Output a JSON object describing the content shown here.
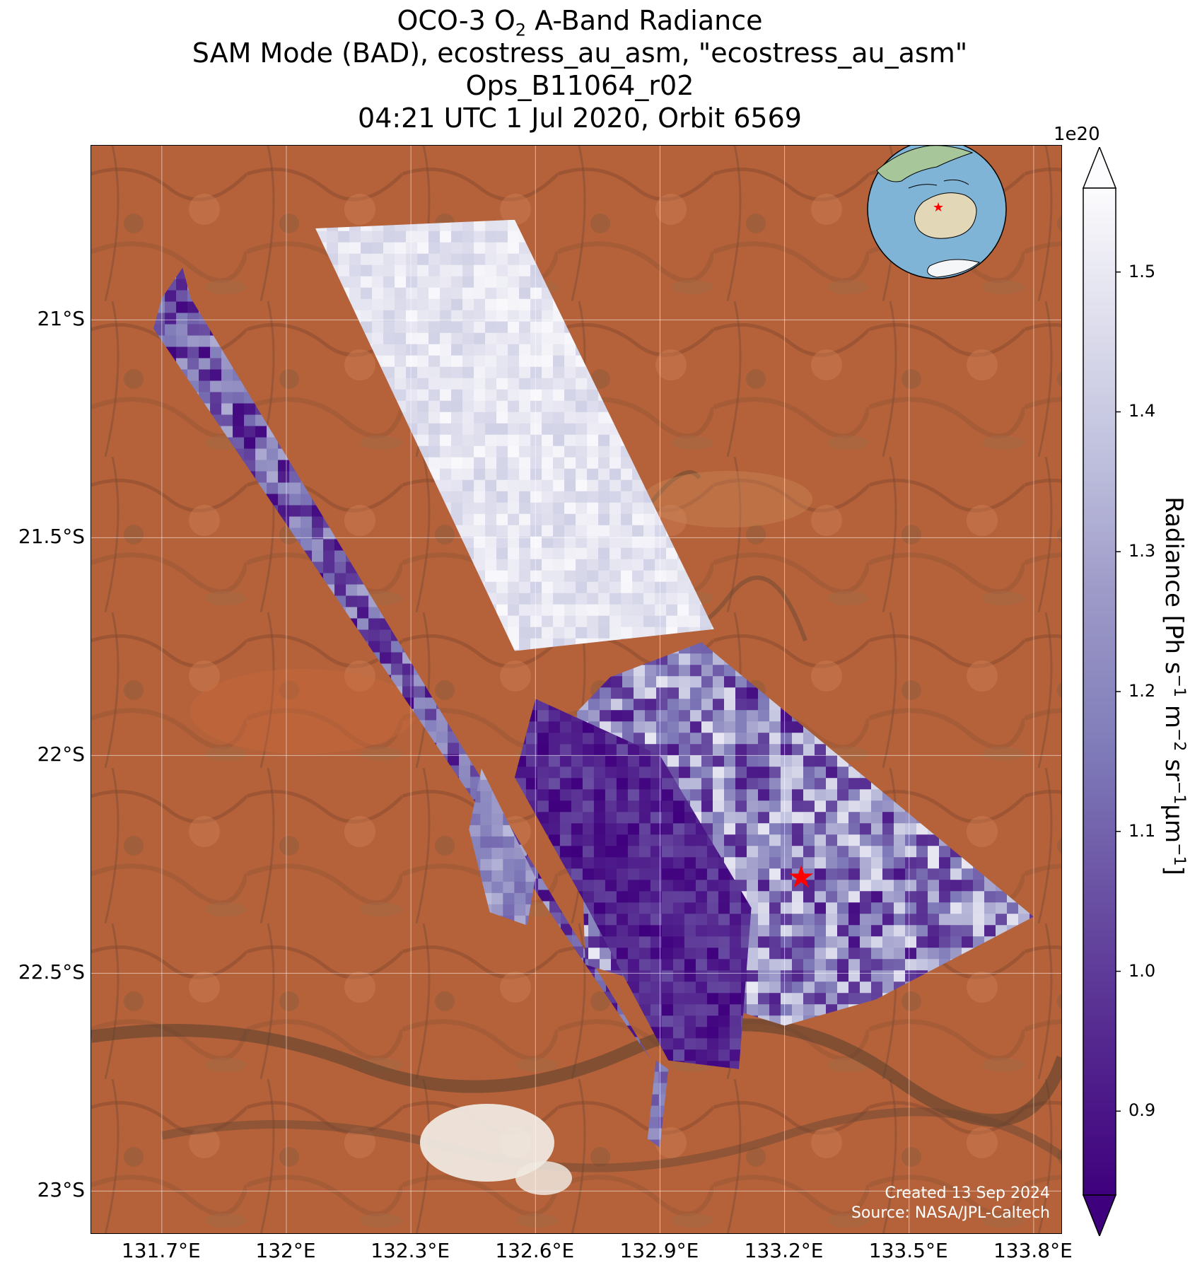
{
  "title": {
    "line1_prefix": "OCO-3 O",
    "line1_sub": "2",
    "line1_suffix": " A-Band Radiance",
    "line2": "SAM Mode (BAD), ecostress_au_asm, \"ecostress_au_asm\"",
    "line3": "Ops_B11064_r02",
    "line4": "04:21 UTC 1 Jul 2020, Orbit 6569"
  },
  "map": {
    "lat_range": [
      -23.1,
      -20.6
    ],
    "lon_range": [
      131.53,
      133.87
    ],
    "lat_ticks": [
      {
        "value": -21.0,
        "label": "21°S"
      },
      {
        "value": -21.5,
        "label": "21.5°S"
      },
      {
        "value": -22.0,
        "label": "22°S"
      },
      {
        "value": -22.5,
        "label": "22.5°S"
      },
      {
        "value": -23.0,
        "label": "23°S"
      }
    ],
    "lon_ticks": [
      {
        "value": 131.7,
        "label": "131.7°E"
      },
      {
        "value": 132.0,
        "label": "132°E"
      },
      {
        "value": 132.3,
        "label": "132.3°E"
      },
      {
        "value": 132.6,
        "label": "132.6°E"
      },
      {
        "value": 132.9,
        "label": "132.9°E"
      },
      {
        "value": 133.2,
        "label": "133.2°E"
      },
      {
        "value": 133.5,
        "label": "133.5°E"
      },
      {
        "value": 133.8,
        "label": "133.8°E"
      }
    ],
    "grid": true,
    "target_marker": {
      "lat": -22.28,
      "lon": 133.24,
      "symbol": "star",
      "color": "#ff0000"
    },
    "inset_globe": {
      "position": "top-right",
      "marker_color": "#ff0000"
    },
    "swaths": [
      {
        "name": "swath-1",
        "corners": [
          [
            131.75,
            -20.88
          ],
          [
            131.77,
            -20.95
          ],
          [
            132.88,
            -22.7
          ],
          [
            132.82,
            -22.62
          ],
          [
            131.68,
            -21.02
          ],
          [
            131.7,
            -20.95
          ]
        ],
        "value_range": [
          0.85,
          1.32
        ]
      },
      {
        "name": "swath-2",
        "corners": [
          [
            132.07,
            -20.79
          ],
          [
            132.55,
            -20.77
          ],
          [
            133.03,
            -21.71
          ],
          [
            132.55,
            -21.76
          ]
        ],
        "value_range": [
          1.42,
          1.55
        ]
      },
      {
        "name": "swath-3",
        "corners": [
          [
            132.78,
            -21.82
          ],
          [
            133.0,
            -21.74
          ],
          [
            133.8,
            -22.37
          ],
          [
            133.42,
            -22.56
          ],
          [
            133.2,
            -22.62
          ],
          [
            132.72,
            -22.48
          ],
          [
            132.7,
            -21.9
          ]
        ],
        "value_range": [
          0.88,
          1.5
        ]
      },
      {
        "name": "swath-4",
        "corners": [
          [
            132.55,
            -22.05
          ],
          [
            132.72,
            -22.34
          ],
          [
            132.92,
            -22.7
          ],
          [
            133.09,
            -22.72
          ],
          [
            133.12,
            -22.35
          ],
          [
            132.9,
            -22.0
          ],
          [
            132.6,
            -21.87
          ]
        ],
        "value_range": [
          0.84,
          1.05
        ]
      },
      {
        "name": "swath-5",
        "corners": [
          [
            132.47,
            -22.03
          ],
          [
            132.6,
            -22.28
          ],
          [
            132.58,
            -22.39
          ],
          [
            132.49,
            -22.36
          ],
          [
            132.44,
            -22.17
          ]
        ],
        "value_range": [
          1.1,
          1.35
        ]
      },
      {
        "name": "swath-6",
        "corners": [
          [
            132.89,
            -22.7
          ],
          [
            132.92,
            -22.72
          ],
          [
            132.9,
            -22.9
          ],
          [
            132.87,
            -22.88
          ]
        ],
        "value_range": [
          1.05,
          1.25
        ]
      }
    ],
    "credits_line1": "Created 13 Sep 2024",
    "credits_line2": "Source: NASA/JPL-Caltech"
  },
  "colorbar": {
    "colormap": "Purples_r",
    "exponent_label": "1e20",
    "vmin": 0.84,
    "vmax": 1.56,
    "ticks": [
      {
        "value": 0.9,
        "label": "0.9"
      },
      {
        "value": 1.0,
        "label": "1.0"
      },
      {
        "value": 1.1,
        "label": "1.1"
      },
      {
        "value": 1.2,
        "label": "1.2"
      },
      {
        "value": 1.3,
        "label": "1.3"
      },
      {
        "value": 1.4,
        "label": "1.4"
      },
      {
        "value": 1.5,
        "label": "1.5"
      }
    ],
    "extend": "both",
    "label_main": "Radiance [Ph s",
    "label_sup1": "−1",
    "label_mid1": " m",
    "label_sup2": "−2",
    "label_mid2": " sr",
    "label_sup3": "−1",
    "label_mid3": "μm",
    "label_sup4": "−1",
    "label_end": "]"
  }
}
